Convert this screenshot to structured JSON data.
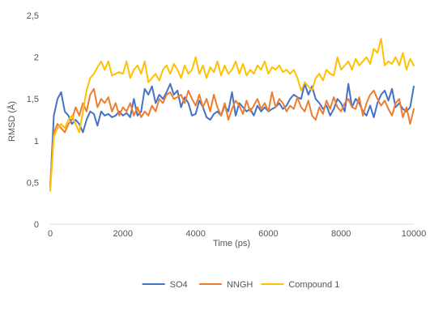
{
  "chart_data": {
    "type": "line",
    "title": "",
    "xlabel": "Time (ps)",
    "ylabel": "RMSD (Å)",
    "xlim": [
      0,
      10000
    ],
    "ylim": [
      0,
      2.5
    ],
    "x_ticks": [
      "0",
      "2000",
      "4000",
      "6000",
      "8000",
      "10000"
    ],
    "y_ticks": [
      "0",
      "0,5",
      "1",
      "1,5",
      "2",
      "2,5"
    ],
    "grid": false,
    "legend_position": "bottom",
    "series": [
      {
        "name": "SO4",
        "color": "#4472c4",
        "x": [
          0,
          100,
          200,
          300,
          400,
          500,
          600,
          700,
          800,
          900,
          1000,
          1100,
          1200,
          1300,
          1400,
          1500,
          1600,
          1700,
          1800,
          1900,
          2000,
          2100,
          2200,
          2300,
          2400,
          2500,
          2600,
          2700,
          2800,
          2900,
          3000,
          3100,
          3200,
          3300,
          3400,
          3500,
          3600,
          3700,
          3800,
          3900,
          4000,
          4100,
          4200,
          4300,
          4400,
          4500,
          4600,
          4700,
          4800,
          4900,
          5000,
          5100,
          5200,
          5300,
          5400,
          5500,
          5600,
          5700,
          5800,
          5900,
          6000,
          6100,
          6200,
          6300,
          6400,
          6500,
          6600,
          6700,
          6800,
          6900,
          7000,
          7100,
          7200,
          7300,
          7400,
          7500,
          7600,
          7700,
          7800,
          7900,
          8000,
          8100,
          8200,
          8300,
          8400,
          8500,
          8600,
          8700,
          8800,
          8900,
          9000,
          9100,
          9200,
          9300,
          9400,
          9500,
          9600,
          9700,
          9800,
          9900,
          10000
        ],
        "y": [
          0.45,
          1.3,
          1.5,
          1.58,
          1.35,
          1.3,
          1.2,
          1.25,
          1.2,
          1.1,
          1.25,
          1.35,
          1.32,
          1.18,
          1.35,
          1.3,
          1.32,
          1.28,
          1.3,
          1.35,
          1.3,
          1.33,
          1.28,
          1.5,
          1.3,
          1.35,
          1.62,
          1.55,
          1.65,
          1.45,
          1.55,
          1.5,
          1.58,
          1.68,
          1.55,
          1.6,
          1.4,
          1.52,
          1.45,
          1.3,
          1.32,
          1.48,
          1.4,
          1.28,
          1.25,
          1.32,
          1.35,
          1.3,
          1.42,
          1.35,
          1.58,
          1.3,
          1.45,
          1.4,
          1.35,
          1.38,
          1.3,
          1.42,
          1.35,
          1.4,
          1.35,
          1.38,
          1.4,
          1.45,
          1.38,
          1.42,
          1.5,
          1.55,
          1.52,
          1.5,
          1.68,
          1.55,
          1.65,
          1.5,
          1.45,
          1.38,
          1.42,
          1.3,
          1.38,
          1.5,
          1.45,
          1.35,
          1.68,
          1.4,
          1.5,
          1.45,
          1.35,
          1.3,
          1.42,
          1.28,
          1.45,
          1.55,
          1.6,
          1.48,
          1.62,
          1.4,
          1.45,
          1.38,
          1.35,
          1.4,
          1.65
        ]
      },
      {
        "name": "NNGH",
        "color": "#ed7d31",
        "x": [
          0,
          100,
          200,
          300,
          400,
          500,
          600,
          700,
          800,
          900,
          1000,
          1100,
          1200,
          1300,
          1400,
          1500,
          1600,
          1700,
          1800,
          1900,
          2000,
          2100,
          2200,
          2300,
          2400,
          2500,
          2600,
          2700,
          2800,
          2900,
          3000,
          3100,
          3200,
          3300,
          3400,
          3500,
          3600,
          3700,
          3800,
          3900,
          4000,
          4100,
          4200,
          4300,
          4400,
          4500,
          4600,
          4700,
          4800,
          4900,
          5000,
          5100,
          5200,
          5300,
          5400,
          5500,
          5600,
          5700,
          5800,
          5900,
          6000,
          6100,
          6200,
          6300,
          6400,
          6500,
          6600,
          6700,
          6800,
          6900,
          7000,
          7100,
          7200,
          7300,
          7400,
          7500,
          7600,
          7700,
          7800,
          7900,
          8000,
          8100,
          8200,
          8300,
          8400,
          8500,
          8600,
          8700,
          8800,
          8900,
          9000,
          9100,
          9200,
          9300,
          9400,
          9500,
          9600,
          9700,
          9800,
          9900,
          10000
        ],
        "y": [
          0.45,
          1.1,
          1.2,
          1.15,
          1.1,
          1.2,
          1.25,
          1.4,
          1.3,
          1.45,
          1.35,
          1.55,
          1.62,
          1.4,
          1.5,
          1.45,
          1.52,
          1.35,
          1.45,
          1.3,
          1.4,
          1.35,
          1.45,
          1.3,
          1.4,
          1.28,
          1.35,
          1.3,
          1.42,
          1.35,
          1.5,
          1.45,
          1.55,
          1.58,
          1.5,
          1.52,
          1.55,
          1.45,
          1.6,
          1.5,
          1.42,
          1.55,
          1.4,
          1.5,
          1.35,
          1.55,
          1.4,
          1.3,
          1.45,
          1.25,
          1.38,
          1.48,
          1.42,
          1.32,
          1.48,
          1.35,
          1.42,
          1.5,
          1.38,
          1.45,
          1.35,
          1.58,
          1.4,
          1.5,
          1.45,
          1.35,
          1.42,
          1.38,
          1.52,
          1.4,
          1.35,
          1.48,
          1.3,
          1.25,
          1.4,
          1.32,
          1.48,
          1.38,
          1.52,
          1.4,
          1.35,
          1.45,
          1.5,
          1.4,
          1.38,
          1.52,
          1.3,
          1.45,
          1.55,
          1.6,
          1.5,
          1.42,
          1.48,
          1.38,
          1.3,
          1.45,
          1.5,
          1.28,
          1.4,
          1.2,
          1.38
        ]
      },
      {
        "name": "Compound 1",
        "color": "#ffc000",
        "x": [
          0,
          100,
          200,
          300,
          400,
          500,
          600,
          700,
          800,
          900,
          1000,
          1100,
          1200,
          1300,
          1400,
          1500,
          1600,
          1700,
          1800,
          1900,
          2000,
          2100,
          2200,
          2300,
          2400,
          2500,
          2600,
          2700,
          2800,
          2900,
          3000,
          3100,
          3200,
          3300,
          3400,
          3500,
          3600,
          3700,
          3800,
          3900,
          4000,
          4100,
          4200,
          4300,
          4400,
          4500,
          4600,
          4700,
          4800,
          4900,
          5000,
          5100,
          5200,
          5300,
          5400,
          5500,
          5600,
          5700,
          5800,
          5900,
          6000,
          6100,
          6200,
          6300,
          6400,
          6500,
          6600,
          6700,
          6800,
          6900,
          7000,
          7100,
          7200,
          7300,
          7400,
          7500,
          7600,
          7700,
          7800,
          7900,
          8000,
          8100,
          8200,
          8300,
          8400,
          8500,
          8600,
          8700,
          8800,
          8900,
          9000,
          9100,
          9200,
          9300,
          9400,
          9500,
          9600,
          9700,
          9800,
          9900,
          10000
        ],
        "y": [
          0.4,
          1.05,
          1.15,
          1.2,
          1.15,
          1.25,
          1.3,
          1.2,
          1.1,
          1.35,
          1.6,
          1.75,
          1.8,
          1.88,
          1.95,
          1.85,
          1.95,
          1.78,
          1.8,
          1.82,
          1.8,
          1.95,
          1.75,
          1.85,
          1.9,
          1.8,
          1.95,
          1.7,
          1.75,
          1.8,
          1.72,
          1.85,
          1.9,
          1.8,
          1.92,
          1.85,
          1.75,
          1.9,
          1.8,
          1.85,
          2.0,
          1.8,
          1.9,
          1.75,
          1.88,
          1.82,
          1.95,
          1.78,
          1.9,
          1.8,
          1.85,
          1.95,
          1.8,
          1.92,
          1.78,
          1.85,
          1.8,
          1.9,
          1.85,
          1.95,
          1.8,
          1.88,
          1.85,
          1.9,
          1.82,
          1.85,
          1.8,
          1.85,
          1.75,
          1.6,
          1.7,
          1.65,
          1.6,
          1.75,
          1.8,
          1.72,
          1.85,
          1.8,
          1.78,
          2.0,
          1.85,
          1.9,
          1.95,
          1.85,
          1.98,
          1.9,
          1.95,
          2.0,
          1.92,
          2.1,
          2.05,
          2.22,
          1.9,
          1.95,
          1.92,
          2.0,
          1.9,
          2.05,
          1.85,
          1.98,
          1.9
        ]
      }
    ]
  }
}
